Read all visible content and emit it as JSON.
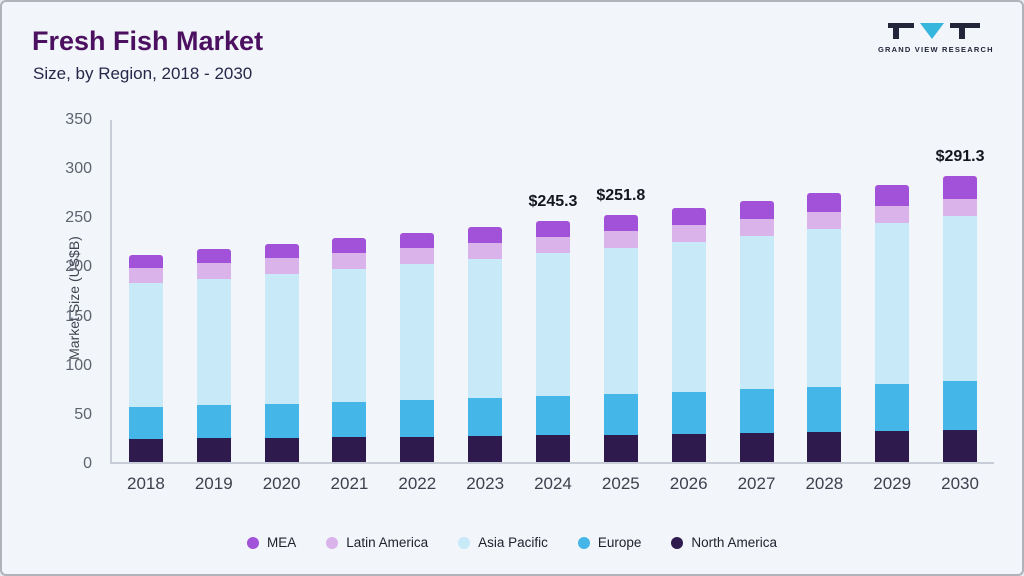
{
  "header": {
    "title": "Fresh Fish Market",
    "subtitle": "Size, by Region, 2018 - 2030",
    "logo_text": "GRAND VIEW RESEARCH"
  },
  "colors": {
    "title": "#4c1060",
    "axis": "#c7ccd6"
  },
  "chart_data": {
    "type": "bar",
    "stacked": true,
    "title": "Fresh Fish Market Size, by Region, 2018 - 2030",
    "xlabel": "",
    "ylabel": "Market Size (US$B)",
    "ylim": [
      0,
      350
    ],
    "yticks": [
      0,
      50,
      100,
      150,
      200,
      250,
      300,
      350
    ],
    "grid": false,
    "legend_position": "bottom",
    "categories": [
      "2018",
      "2019",
      "2020",
      "2021",
      "2022",
      "2023",
      "2024",
      "2025",
      "2026",
      "2027",
      "2028",
      "2029",
      "2030"
    ],
    "series": [
      {
        "name": "North America",
        "color": "#2e1a4d",
        "values": [
          23.5,
          24.0,
          24.5,
          25.0,
          25.8,
          26.5,
          27.2,
          28.0,
          28.8,
          29.7,
          30.6,
          31.5,
          32.5
        ]
      },
      {
        "name": "Europe",
        "color": "#45b6e8",
        "values": [
          32.5,
          33.7,
          34.9,
          36.1,
          37.4,
          38.7,
          40.0,
          41.4,
          42.9,
          44.4,
          46.0,
          47.7,
          49.5
        ]
      },
      {
        "name": "Asia Pacific",
        "color": "#c7e9f8",
        "values": [
          126.0,
          129.0,
          132.0,
          135.2,
          138.1,
          141.8,
          145.3,
          148.9,
          152.6,
          156.4,
          160.3,
          164.3,
          168.5
        ]
      },
      {
        "name": "Latin America",
        "color": "#d9b3ea",
        "values": [
          15.5,
          15.6,
          15.8,
          15.9,
          16.1,
          16.2,
          16.4,
          16.5,
          16.7,
          16.8,
          17.0,
          17.1,
          17.3
        ]
      },
      {
        "name": "MEA",
        "color": "#a152d8",
        "values": [
          13.5,
          14.2,
          14.8,
          15.3,
          15.6,
          15.9,
          16.4,
          17.0,
          17.5,
          18.3,
          19.5,
          21.0,
          23.5
        ]
      }
    ],
    "totals_labeled": {
      "2024": 245.3,
      "2025": 251.8,
      "2030": 291.3
    },
    "annotations": [
      {
        "category": "2024",
        "text": "$245.3"
      },
      {
        "category": "2025",
        "text": "$251.8"
      },
      {
        "category": "2030",
        "text": "$291.3"
      }
    ],
    "legend": [
      "MEA",
      "Latin America",
      "Asia Pacific",
      "Europe",
      "North America"
    ]
  }
}
